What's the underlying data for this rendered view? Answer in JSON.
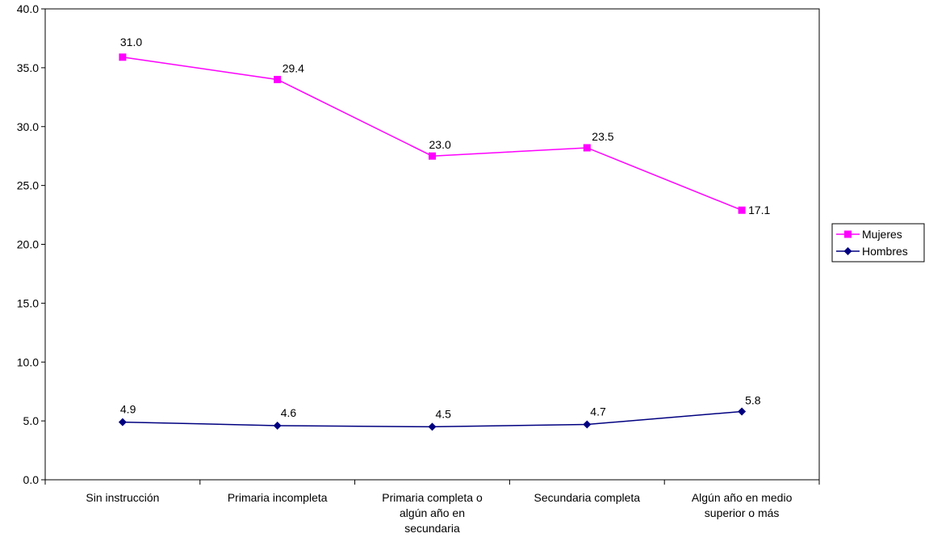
{
  "chart_data": {
    "type": "line",
    "title": "",
    "xlabel": "",
    "ylabel": "",
    "ylim": [
      0,
      40
    ],
    "yticks": [
      "0.0",
      "5.0",
      "10.0",
      "15.0",
      "20.0",
      "25.0",
      "30.0",
      "35.0",
      "40.0"
    ],
    "grid": false,
    "legend_position": "right",
    "categories": [
      [
        "Sin instrucción"
      ],
      [
        "Primaria incompleta"
      ],
      [
        "Primaria completa o",
        "algún año en",
        "secundaria"
      ],
      [
        "Secundaria completa"
      ],
      [
        "Algún año en medio",
        "superior o más"
      ]
    ],
    "series": [
      {
        "name": "Mujeres",
        "color": "#FF00FF",
        "marker": "square",
        "values": [
          35.9,
          34.0,
          27.5,
          28.2,
          22.9
        ],
        "labels": [
          "31.0",
          "29.4",
          "23.0",
          "23.5",
          "17.1"
        ]
      },
      {
        "name": "Hombres",
        "color": "#000080",
        "marker": "diamond",
        "values": [
          4.9,
          4.6,
          4.5,
          4.7,
          5.8
        ],
        "labels": [
          "4.9",
          "4.6",
          "4.5",
          "4.7",
          "5.8"
        ]
      }
    ]
  }
}
